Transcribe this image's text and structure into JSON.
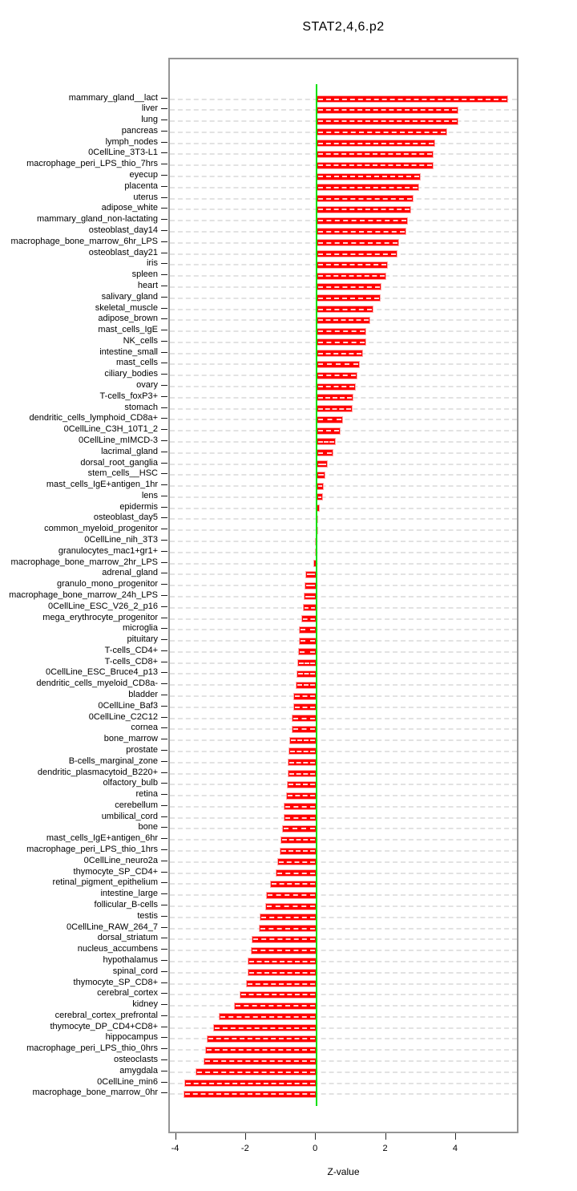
{
  "chart_data": {
    "type": "bar",
    "orientation": "horizontal",
    "title": "STAT2,4,6.p2",
    "xlabel": "Z-value",
    "xlim": [
      -4.2,
      5.8
    ],
    "x_ticks": [
      -4,
      -2,
      0,
      2,
      4
    ],
    "grid": "dashed-horizontal-per-row",
    "zero_line": 0,
    "colors": {
      "bar": "#ff0000",
      "bar_border": "#ffa8a8",
      "zero_line": "#00e000",
      "grid": "#e2e2e2",
      "axis_box": "#959595"
    },
    "categories": [
      "mammary_gland__lact",
      "liver",
      "lung",
      "pancreas",
      "lymph_nodes",
      "0CellLine_3T3-L1",
      "macrophage_peri_LPS_thio_7hrs",
      "eyecup",
      "placenta",
      "uterus",
      "adipose_white",
      "mammary_gland_non-lactating",
      "osteoblast_day14",
      "macrophage_bone_marrow_6hr_LPS",
      "osteoblast_day21",
      "iris",
      "spleen",
      "heart",
      "salivary_gland",
      "skeletal_muscle",
      "adipose_brown",
      "mast_cells_IgE",
      "NK_cells",
      "intestine_small",
      "mast_cells",
      "ciliary_bodies",
      "ovary",
      "T-cells_foxP3+",
      "stomach",
      "dendritic_cells_lymphoid_CD8a+",
      "0CellLine_C3H_10T1_2",
      "0CellLine_mIMCD-3",
      "lacrimal_gland",
      "dorsal_root_ganglia",
      "stem_cells__HSC",
      "mast_cells_IgE+antigen_1hr",
      "lens",
      "epidermis",
      "osteoblast_day5",
      "common_myeloid_progenitor",
      "0CellLine_nih_3T3",
      "granulocytes_mac1+gr1+",
      "macrophage_bone_marrow_2hr_LPS",
      "adrenal_gland",
      "granulo_mono_progenitor",
      "macrophage_bone_marrow_24h_LPS",
      "0CellLine_ESC_V26_2_p16",
      "mega_erythrocyte_progenitor",
      "microglia",
      "pituitary",
      "T-cells_CD4+",
      "T-cells_CD8+",
      "0CellLine_ESC_Bruce4_p13",
      "dendritic_cells_myeloid_CD8a-",
      "bladder",
      "0CellLine_Baf3",
      "0CellLine_C2C12",
      "cornea",
      "bone_marrow",
      "prostate",
      "B-cells_marginal_zone",
      "dendritic_plasmacytoid_B220+",
      "olfactory_bulb",
      "retina",
      "cerebellum",
      "umbilical_cord",
      "bone",
      "mast_cells_IgE+antigen_6hr",
      "macrophage_peri_LPS_thio_1hrs",
      "0CellLine_neuro2a",
      "thymocyte_SP_CD4+",
      "retinal_pigment_epithelium",
      "intestine_large",
      "follicular_B-cells",
      "testis",
      "0CellLine_RAW_264_7",
      "dorsal_striatum",
      "nucleus_accumbens",
      "hypothalamus",
      "spinal_cord",
      "thymocyte_SP_CD8+",
      "cerebral_cortex",
      "kidney",
      "cerebral_cortex_prefrontal",
      "thymocyte_DP_CD4+CD8+",
      "hippocampus",
      "macrophage_peri_LPS_thio_0hrs",
      "osteoclasts",
      "amygdala",
      "0CellLine_min6",
      "macrophage_bone_marrow_0hr"
    ],
    "values": [
      5.47,
      4.05,
      4.04,
      3.73,
      3.39,
      3.34,
      3.34,
      2.98,
      2.92,
      2.77,
      2.7,
      2.6,
      2.57,
      2.36,
      2.32,
      2.04,
      1.99,
      1.85,
      1.83,
      1.62,
      1.52,
      1.41,
      1.41,
      1.32,
      1.24,
      1.16,
      1.12,
      1.05,
      1.03,
      0.75,
      0.69,
      0.54,
      0.47,
      0.31,
      0.24,
      0.21,
      0.17,
      0.08,
      0.02,
      -0.01,
      -0.05,
      -0.05,
      -0.09,
      -0.33,
      -0.35,
      -0.38,
      -0.4,
      -0.43,
      -0.5,
      -0.51,
      -0.53,
      -0.55,
      -0.58,
      -0.61,
      -0.67,
      -0.67,
      -0.71,
      -0.71,
      -0.78,
      -0.8,
      -0.82,
      -0.83,
      -0.85,
      -0.87,
      -0.94,
      -0.95,
      -1.0,
      -1.04,
      -1.06,
      -1.13,
      -1.17,
      -1.33,
      -1.44,
      -1.46,
      -1.64,
      -1.66,
      -1.87,
      -1.88,
      -1.98,
      -1.98,
      -2.02,
      -2.2,
      -2.37,
      -2.81,
      -2.96,
      -3.14,
      -3.18,
      -3.23,
      -3.46,
      -3.78,
      -3.8
    ]
  }
}
